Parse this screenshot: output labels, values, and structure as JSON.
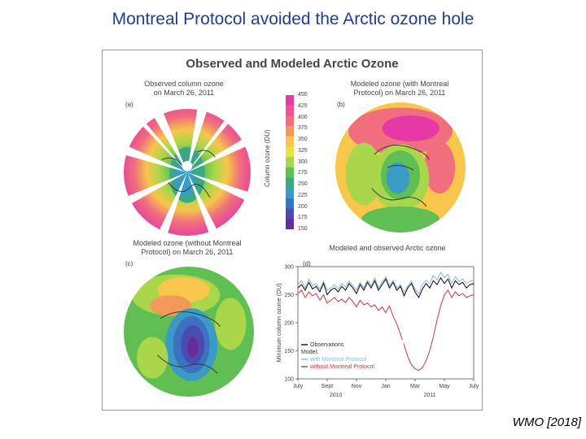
{
  "slide_title": "Montreal Protocol avoided the Arctic ozone hole",
  "credit": "WMO [2018]",
  "figure": {
    "title": "Observed and Modeled Arctic Ozone",
    "panel_a": {
      "letter": "(a)",
      "caption_l1": "Observed column ozone",
      "caption_l2": "on March 26, 2011"
    },
    "panel_b": {
      "letter": "(b)",
      "caption_l1": "Modeled ozone (with Montreal",
      "caption_l2": "Protocol) on March 26, 2011"
    },
    "panel_c": {
      "letter": "(c)",
      "caption_l1": "Modeled ozone (without Montreal",
      "caption_l2": "Protocol) on March 26, 2011"
    },
    "panel_d": {
      "letter": "(d)",
      "caption": "Modeled and observed Arctic ozone"
    },
    "colorbar": {
      "label": "Column ozone (DU)",
      "ticks": [
        "450",
        "425",
        "400",
        "375",
        "350",
        "325",
        "300",
        "275",
        "250",
        "225",
        "200",
        "175",
        "150"
      ],
      "colors": [
        "#e53aa5",
        "#f0529a",
        "#f06e7d",
        "#f39a5a",
        "#f7c64a",
        "#e8e445",
        "#a9d64a",
        "#5fbf52",
        "#3aa882",
        "#3a9cc4",
        "#3b72c1",
        "#4a4bb0",
        "#6a2a9a"
      ]
    }
  },
  "chart_data": {
    "type": "line",
    "title": "Modeled and observed Arctic ozone",
    "xlabel": "",
    "ylabel": "Minimum column ozone (DU)",
    "ylim": [
      100,
      300
    ],
    "yticks": [
      100,
      150,
      200,
      250,
      300
    ],
    "x_ticks": [
      "July",
      "Sept",
      "Nov",
      "Jan",
      "Mar",
      "May",
      "July"
    ],
    "x_years": [
      "2010",
      "2011"
    ],
    "grid": false,
    "legend_placement": "bottom-left",
    "legend": {
      "obs": "Observations",
      "heading": "Model:",
      "with": "with Montreal Protocol",
      "without": "without Montreal Protocol"
    },
    "x": [
      0,
      0.25,
      0.5,
      0.75,
      1,
      1.25,
      1.5,
      1.75,
      2,
      2.25,
      2.5,
      2.75,
      3,
      3.25,
      3.5,
      3.75,
      4,
      4.25,
      4.5,
      4.75,
      5,
      5.25,
      5.5,
      5.75,
      6,
      6.25,
      6.5,
      6.75,
      7,
      7.25,
      7.5,
      7.75,
      8,
      8.25,
      8.5,
      8.75,
      9,
      9.25,
      9.5,
      9.75,
      10,
      10.25,
      10.5,
      10.75,
      11,
      11.25,
      11.5,
      11.75,
      12
    ],
    "series": [
      {
        "name": "Observations",
        "color": "#1a1a1a",
        "values": [
          262,
          268,
          258,
          272,
          260,
          265,
          255,
          270,
          250,
          258,
          262,
          255,
          265,
          258,
          270,
          262,
          252,
          268,
          258,
          272,
          262,
          275,
          258,
          268,
          278,
          262,
          272,
          258,
          265,
          248,
          262,
          270,
          255,
          245,
          260,
          270,
          262,
          275,
          268,
          280,
          270,
          278,
          262,
          275,
          268,
          272,
          262,
          268,
          270
        ]
      },
      {
        "name": "with Montreal Protocol",
        "color": "#8ab6d6",
        "values": [
          268,
          275,
          262,
          278,
          266,
          270,
          260,
          274,
          258,
          262,
          268,
          260,
          270,
          264,
          274,
          266,
          258,
          272,
          262,
          276,
          266,
          280,
          262,
          272,
          282,
          266,
          276,
          262,
          268,
          254,
          266,
          274,
          260,
          252,
          268,
          276,
          270,
          284,
          276,
          290,
          280,
          286,
          270,
          282,
          274,
          278,
          270,
          274,
          276
        ]
      },
      {
        "name": "without Montreal Protocol",
        "color": "#c0393b",
        "values": [
          252,
          258,
          245,
          255,
          248,
          252,
          240,
          250,
          235,
          240,
          245,
          238,
          242,
          236,
          245,
          238,
          228,
          240,
          232,
          235,
          228,
          232,
          222,
          228,
          218,
          230,
          212,
          198,
          180,
          160,
          140,
          125,
          118,
          115,
          120,
          132,
          150,
          175,
          205,
          230,
          250,
          258,
          245,
          255,
          248,
          252,
          245,
          248,
          250
        ]
      }
    ]
  }
}
